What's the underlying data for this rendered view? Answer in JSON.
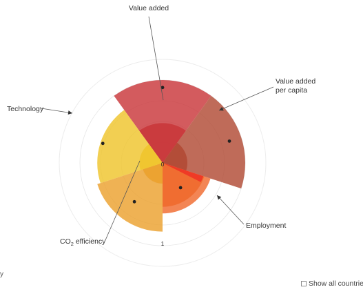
{
  "chart_data": {
    "type": "polar-area",
    "title": "",
    "range": [
      0,
      1
    ],
    "tick_labels": [
      "0",
      "1"
    ],
    "grid": true,
    "series": [
      {
        "name": "Value added",
        "color": "#c9373b",
        "values": [
          0.48,
          1.0,
          0.91
        ]
      },
      {
        "name": "Value added per capita",
        "color": "#b14a34",
        "values": [
          0.3,
          1.0,
          0.85
        ]
      },
      {
        "name": "Employment",
        "color": "#f06a2e",
        "values": [
          0.53,
          0.61,
          0.37
        ]
      },
      {
        "name": "CO2 efficiency",
        "color": "#eba12e",
        "values": [
          0.25,
          0.83,
          0.58
        ]
      },
      {
        "name": "Technology",
        "color": "#efc42c",
        "values": [
          0.28,
          0.79,
          0.76
        ]
      }
    ],
    "highlight_color": "#ee3124"
  },
  "labels": {
    "value_added": "Value added",
    "value_added_per_capita_line1": "Value added",
    "value_added_per_capita_line2": "per capita",
    "employment": "Employment",
    "co2_prefix": "CO",
    "co2_sub": "2",
    "co2_suffix": " efficiency",
    "technology": "Technology"
  },
  "controls": {
    "show_all_countries": "Show all countries"
  },
  "cut_text": "y"
}
